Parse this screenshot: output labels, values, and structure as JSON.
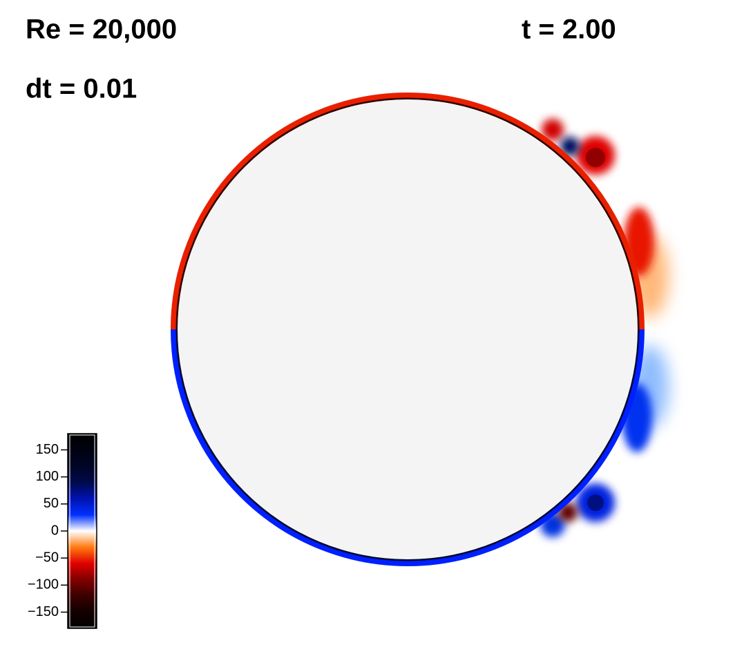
{
  "labels": {
    "reynolds": "Re = 20,000",
    "timestep": "dt = 0.01",
    "time": "t = 2.00"
  },
  "colorbar": {
    "lim": [
      -180,
      180
    ],
    "ticks": [
      {
        "value": 150,
        "label": "150"
      },
      {
        "value": 100,
        "label": "100"
      },
      {
        "value": 50,
        "label": "50"
      },
      {
        "value": 0,
        "label": "0"
      },
      {
        "value": -50,
        "label": "−50"
      },
      {
        "value": -100,
        "label": "−100"
      },
      {
        "value": -150,
        "label": "−150"
      }
    ],
    "colors": [
      "#000000",
      "#000210",
      "#000525",
      "#000a4a",
      "#0012b0",
      "#0030ff",
      "#ffffff",
      "#ff7a10",
      "#e00000",
      "#800000",
      "#3a0000",
      "#120000",
      "#000000"
    ]
  }
}
